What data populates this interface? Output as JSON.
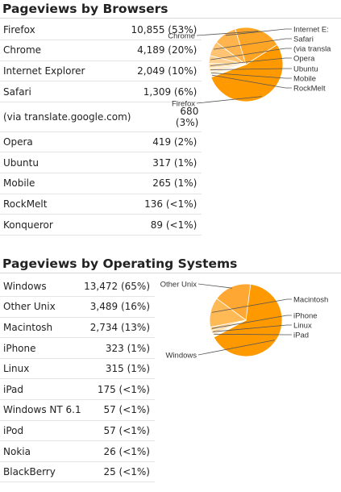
{
  "chart_data": [
    {
      "type": "pie",
      "title": "Pageviews by Browsers",
      "categories": [
        "Firefox",
        "Chrome",
        "Internet Explorer",
        "Safari",
        "(via translate.google.com)",
        "Opera",
        "Ubuntu",
        "Mobile",
        "RockMelt",
        "Konqueror"
      ],
      "values": [
        10855,
        4189,
        2049,
        1309,
        680,
        419,
        317,
        265,
        136,
        89
      ],
      "value_labels": [
        "10,855 (53%)",
        "4,189 (20%)",
        "2,049 (10%)",
        "1,309 (6%)",
        "680 (3%)",
        "419 (2%)",
        "317 (1%)",
        "265 (1%)",
        "136 (<1%)",
        "89 (<1%)"
      ],
      "pie_labels": [
        "Firefox",
        "Chrome",
        "Internet E:",
        "Safari",
        "(via transla",
        "Opera",
        "Ubuntu",
        "Mobile",
        "RockMelt"
      ],
      "legend": "callout labels",
      "colors": [
        "#ff9900",
        "#ffa526",
        "#ffb44d",
        "#ffc473",
        "#ffd190",
        "#ffdda8",
        "#ffe6bf",
        "#ffeecf",
        "#fff3dc",
        "#fff7e8"
      ]
    },
    {
      "type": "pie",
      "title": "Pageviews by Operating Systems",
      "categories": [
        "Windows",
        "Other Unix",
        "Macintosh",
        "iPhone",
        "Linux",
        "iPad",
        "Windows NT 6.1",
        "iPod",
        "Nokia",
        "BlackBerry"
      ],
      "values": [
        13472,
        3489,
        2734,
        323,
        315,
        175,
        57,
        57,
        26,
        25
      ],
      "value_labels": [
        "13,472 (65%)",
        "3,489 (16%)",
        "2,734 (13%)",
        "323 (1%)",
        "315 (1%)",
        "175 (<1%)",
        "57 (<1%)",
        "57 (<1%)",
        "26 (<1%)",
        "25 (<1%)"
      ],
      "pie_labels": [
        "Windows",
        "Other Unix",
        "Macintosh",
        "iPhone",
        "Linux",
        "iPad"
      ],
      "legend": "callout labels",
      "colors": [
        "#ff9900",
        "#ffa733",
        "#ffb955",
        "#ffcc80",
        "#ffd9a0",
        "#ffe3b8",
        "#ffebca",
        "#fff0d8",
        "#fff4e3",
        "#fff8ee"
      ]
    }
  ]
}
